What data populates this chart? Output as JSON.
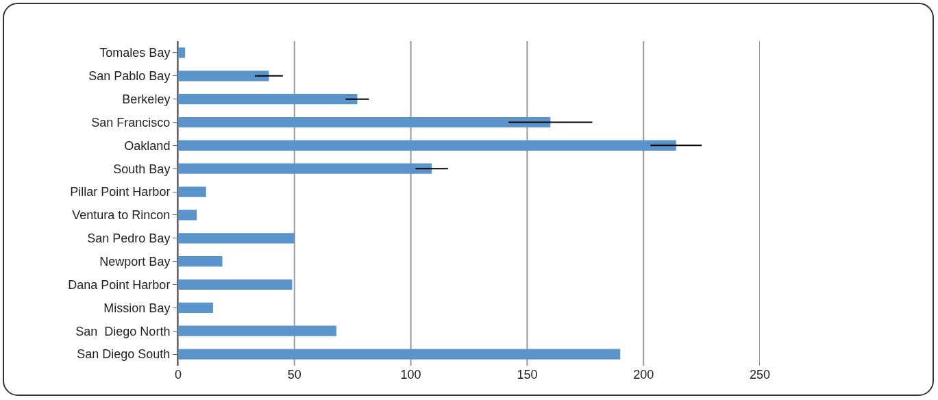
{
  "chart_data": {
    "type": "bar",
    "orientation": "horizontal",
    "categories": [
      "Tomales Bay",
      "San Pablo Bay",
      "Berkeley",
      "San Francisco",
      "Oakland",
      "South Bay",
      "Pillar Point Harbor",
      "Ventura to Rincon",
      "San Pedro Bay",
      "Newport Bay",
      "Dana Point Harbor",
      "Mission Bay",
      "San  Diego North",
      "San Diego South"
    ],
    "values": [
      3,
      39,
      77,
      160,
      214,
      109,
      12,
      8,
      50,
      19,
      49,
      15,
      68,
      190
    ],
    "errors": [
      null,
      6,
      5,
      18,
      11,
      7,
      null,
      null,
      null,
      null,
      null,
      null,
      null,
      null
    ],
    "color": "#5b93cb",
    "xlim": [
      0,
      250
    ],
    "xticks": [
      0,
      50,
      100,
      150,
      200,
      250
    ],
    "grid": "x"
  }
}
